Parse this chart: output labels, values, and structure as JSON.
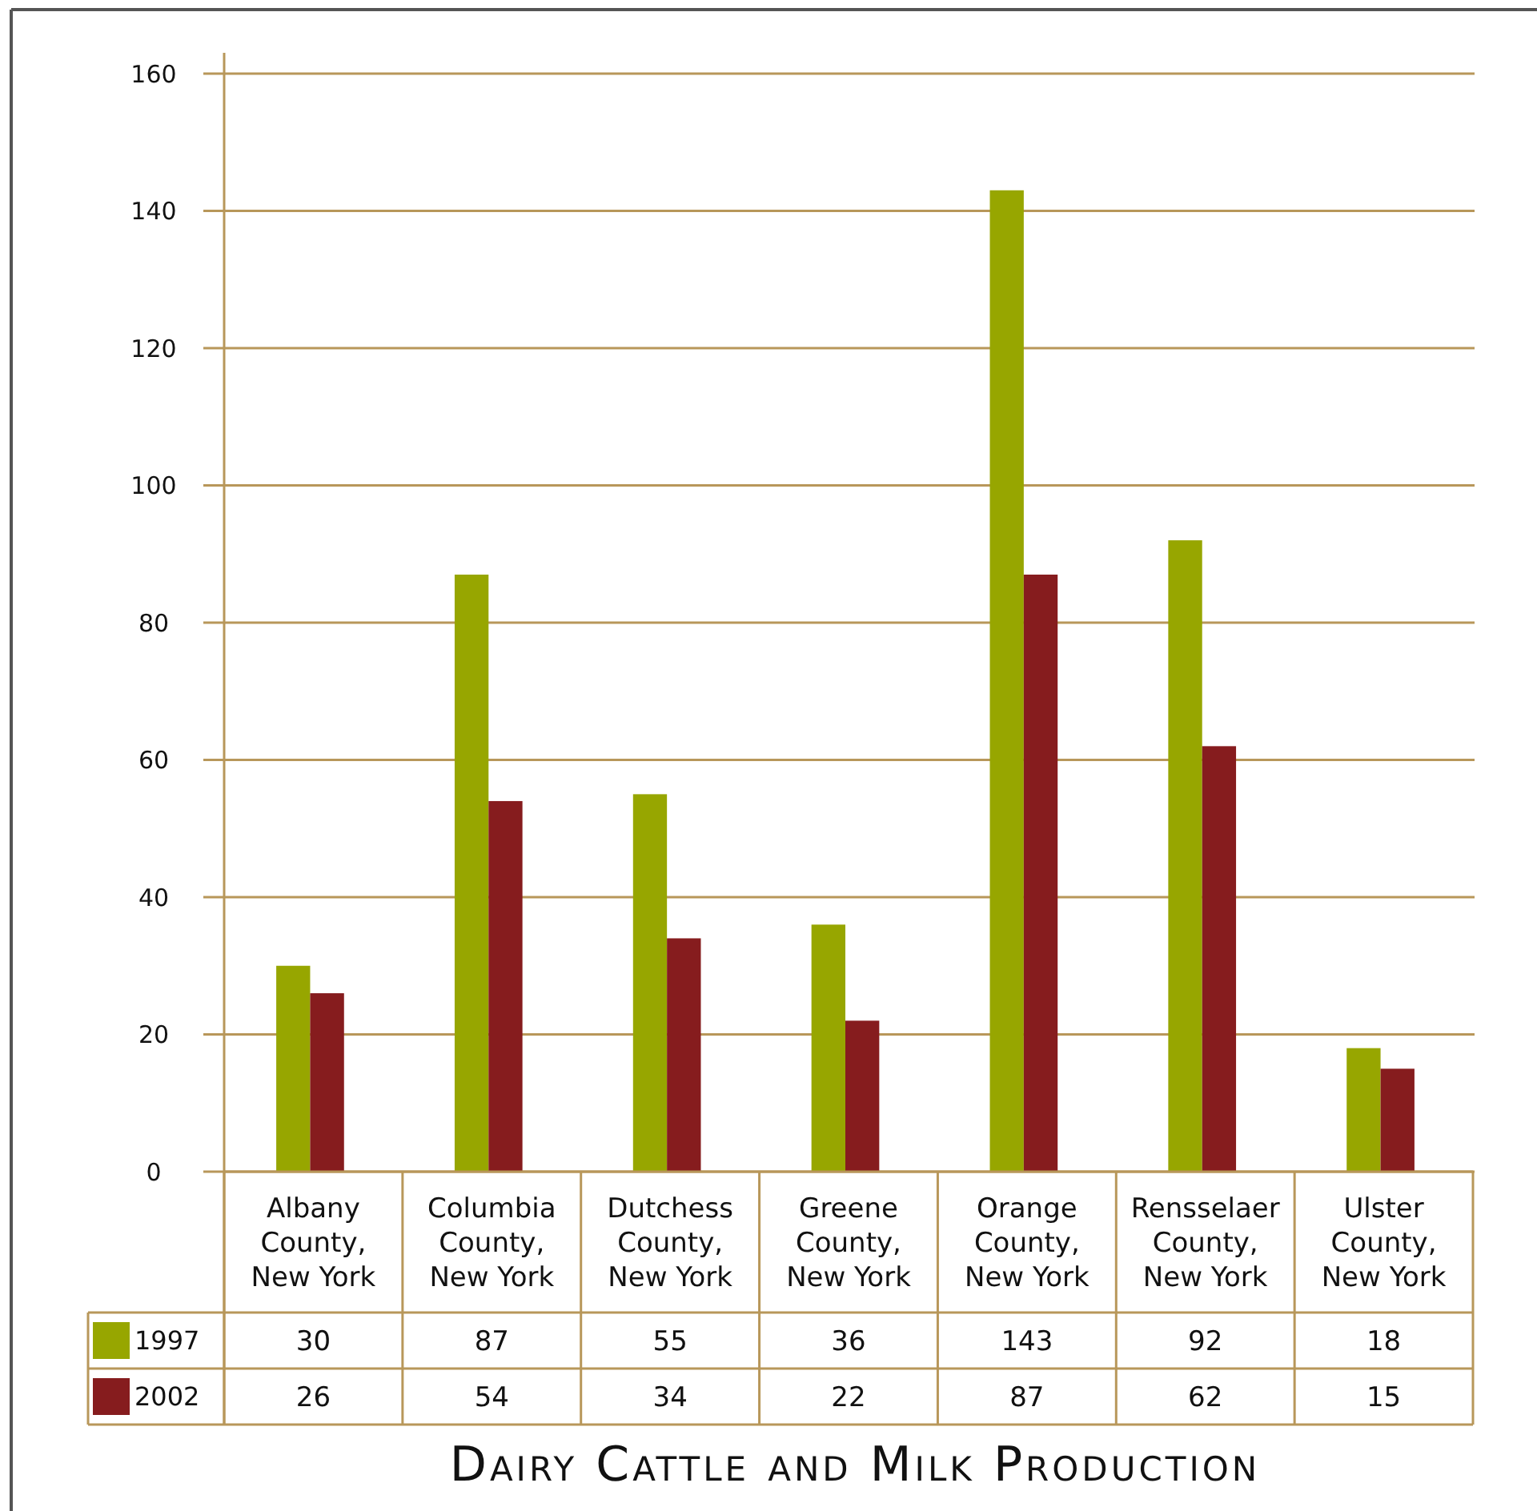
{
  "chart_data": {
    "type": "bar",
    "title": "Dairy Cattle and Milk Production",
    "categories": [
      "Albany County, New York",
      "Columbia County, New York",
      "Dutchess County, New York",
      "Greene County, New York",
      "Orange County, New York",
      "Rensselaer County, New York",
      "Ulster County, New York"
    ],
    "series": [
      {
        "name": "1997",
        "color": "#97a600",
        "values": [
          30,
          87,
          55,
          36,
          143,
          92,
          18
        ]
      },
      {
        "name": "2002",
        "color": "#861c1e",
        "values": [
          26,
          54,
          34,
          22,
          87,
          62,
          15
        ]
      }
    ],
    "ylim": [
      0,
      160
    ],
    "yticks": [
      0,
      20,
      40,
      60,
      80,
      100,
      120,
      140,
      160
    ],
    "grid": "y",
    "legend": "bottom left",
    "data_labels": true
  }
}
